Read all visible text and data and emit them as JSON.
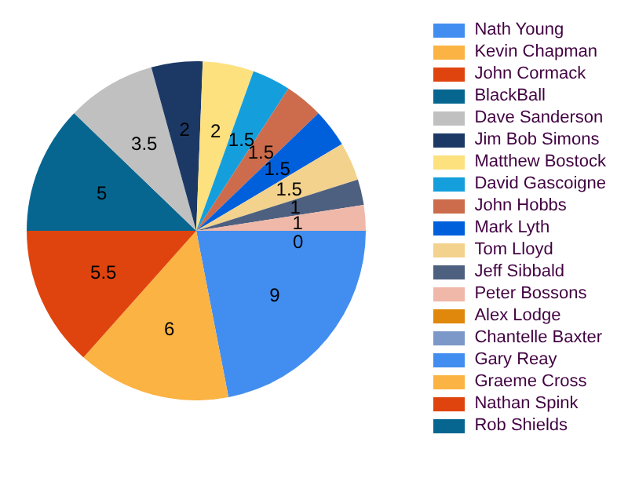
{
  "chart_data": {
    "type": "pie",
    "categories": [
      "Nath Young",
      "Kevin Chapman",
      "John Cormack",
      "BlackBall",
      "Dave Sanderson",
      "Jim Bob Simons",
      "Matthew Bostock",
      "David Gascoigne",
      "John Hobbs",
      "Mark Lyth",
      "Tom Lloyd",
      "Jeff Sibbald",
      "Peter Bossons",
      "Alex Lodge",
      "Chantelle Baxter",
      "Gary Reay",
      "Graeme Cross",
      "Nathan Spink",
      "Rob Shields"
    ],
    "values": [
      9,
      6,
      5.5,
      5,
      3.5,
      2,
      2,
      1.5,
      1.5,
      1.5,
      1.5,
      1,
      1,
      0,
      0,
      0,
      0,
      0,
      0
    ],
    "value_labels": [
      "9",
      "6",
      "5.5",
      "5",
      "3.5",
      "2",
      "2",
      "1.5",
      "1.5",
      "1.5",
      "1.5",
      "1",
      "1",
      "0",
      null,
      null,
      null,
      null,
      null
    ],
    "colors": [
      "#428ef0",
      "#fbb343",
      "#e0440e",
      "#066690",
      "#c0c0c0",
      "#1c3966",
      "#fde17f",
      "#149fdc",
      "#cc6c4c",
      "#0060dc",
      "#f2d28c",
      "#4e6080",
      "#f0b8a8",
      "#e0880c",
      "#7c98c8",
      "#428ef0",
      "#fbb343",
      "#e0440e",
      "#066690"
    ],
    "legend": "right"
  }
}
